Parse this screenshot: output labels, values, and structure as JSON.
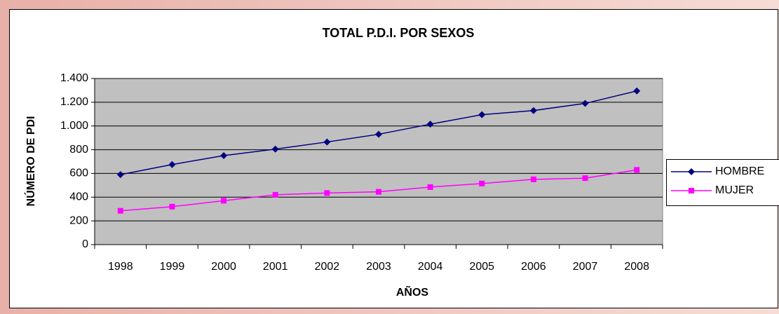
{
  "chart_data": {
    "type": "line",
    "title": "TOTAL P.D.I. POR SEXOS",
    "x_label": "AÑOS",
    "y_label": "NÚMERO DE PDI",
    "categories": [
      "1998",
      "1999",
      "2000",
      "2001",
      "2002",
      "2003",
      "2004",
      "2005",
      "2006",
      "2007",
      "2008"
    ],
    "series": [
      {
        "name": "HOMBRE",
        "color": "#000080",
        "marker": "diamond",
        "values": [
          590,
          675,
          750,
          805,
          865,
          930,
          1015,
          1095,
          1130,
          1190,
          1295
        ]
      },
      {
        "name": "MUJER",
        "color": "#ff00ff",
        "marker": "square",
        "values": [
          285,
          320,
          370,
          420,
          435,
          445,
          485,
          515,
          550,
          560,
          630
        ]
      }
    ],
    "ylim": [
      0,
      1400
    ],
    "yticks": [
      0,
      200,
      400,
      600,
      800,
      {
        "value": 1000,
        "label": "1.000"
      },
      {
        "value": 1200,
        "label": "1.200"
      },
      {
        "value": 1400,
        "label": "1.400"
      }
    ],
    "grid": true,
    "legend": "right",
    "plot_background": "#c0c0c0"
  }
}
